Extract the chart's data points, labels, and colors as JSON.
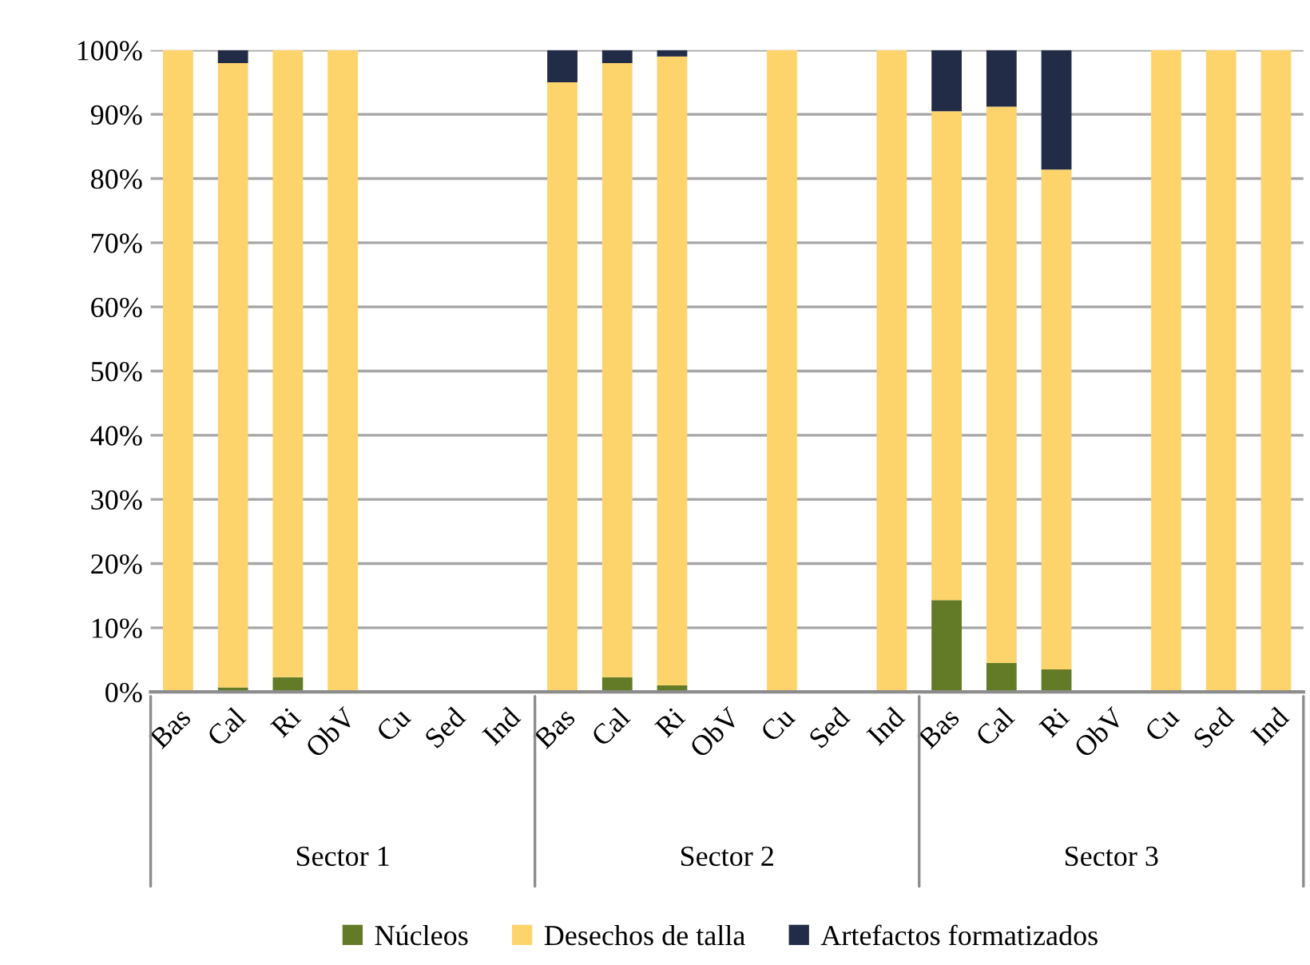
{
  "chart_data": {
    "type": "bar",
    "stacked": true,
    "categories": [
      "Bas",
      "Cal",
      "Ri",
      "ObV",
      "Cu",
      "Sed",
      "Ind",
      "Bas",
      "Cal",
      "Ri",
      "ObV",
      "Cu",
      "Sed",
      "Ind",
      "Bas",
      "Cal",
      "Ri",
      "ObV",
      "Cu",
      "Sed",
      "Ind"
    ],
    "series": [
      {
        "name": "Núcleos",
        "color": "#637a26",
        "values": [
          null,
          0.7,
          2.3,
          null,
          null,
          null,
          null,
          null,
          2.3,
          1,
          null,
          null,
          null,
          null,
          14.3,
          4.5,
          3.5,
          null,
          null,
          null,
          null
        ]
      },
      {
        "name": "Desechos de talla",
        "color": "#fdd36c",
        "values": [
          100,
          97.3,
          97.7,
          100,
          null,
          null,
          null,
          95,
          95.7,
          98,
          null,
          100,
          null,
          100,
          76.2,
          86.7,
          77.9,
          null,
          100,
          100,
          100
        ]
      },
      {
        "name": "Artefactos formatizados",
        "color": "#232c47",
        "values": [
          null,
          2,
          null,
          null,
          null,
          null,
          null,
          5,
          2,
          1,
          null,
          null,
          null,
          null,
          9.5,
          8.8,
          18.6,
          null,
          null,
          null,
          null
        ]
      }
    ],
    "ylim": [
      0,
      100
    ],
    "yticks": [
      {
        "value": 0,
        "label": "0%"
      },
      {
        "value": 10,
        "label": "10%"
      },
      {
        "value": 20,
        "label": "20%"
      },
      {
        "value": 30,
        "label": "30%"
      },
      {
        "value": 40,
        "label": "40%"
      },
      {
        "value": 50,
        "label": "50%"
      },
      {
        "value": 60,
        "label": "60%"
      },
      {
        "value": 70,
        "label": "70%"
      },
      {
        "value": 80,
        "label": "80%"
      },
      {
        "value": 90,
        "label": "90%"
      },
      {
        "value": 100,
        "label": "100%"
      }
    ],
    "grid": "y",
    "legend": "bottom",
    "annotations": [
      "Sector 1",
      "Sector 2",
      "Sector 3"
    ]
  }
}
